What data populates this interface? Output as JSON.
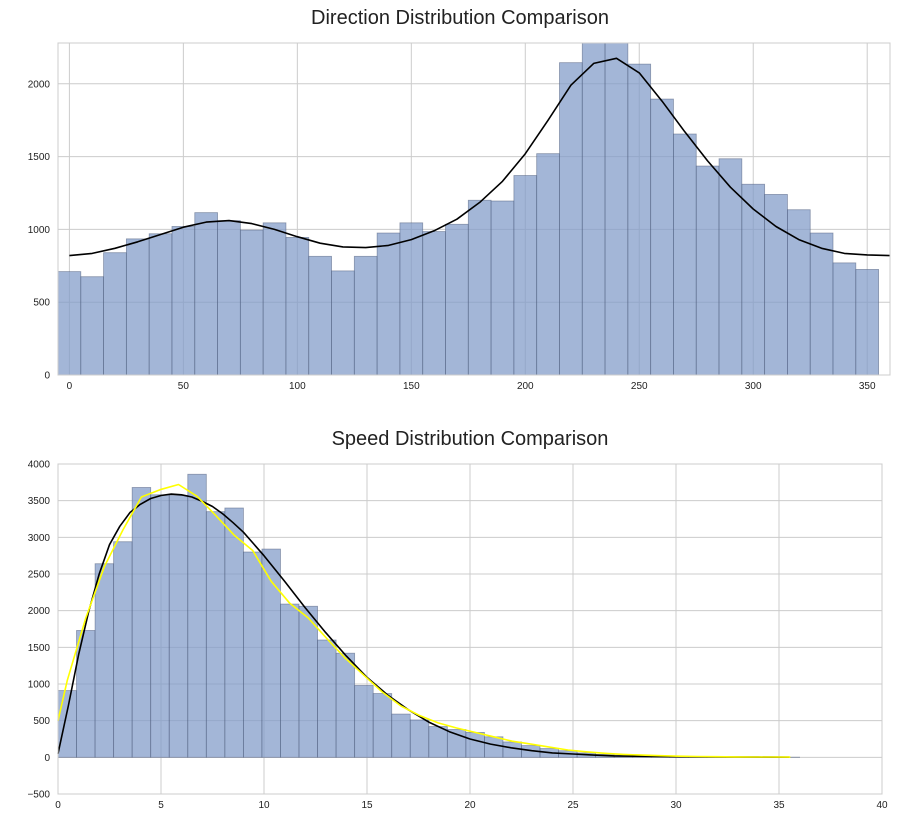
{
  "chart_data": [
    {
      "type": "bar",
      "title": "Direction Distribution Comparison",
      "xlabel": "",
      "ylabel": "",
      "xlim": [
        -5,
        360
      ],
      "ylim": [
        0,
        2280
      ],
      "xticks": [
        0,
        50,
        100,
        150,
        200,
        250,
        300,
        350
      ],
      "yticks": [
        0,
        500,
        1000,
        1500,
        2000
      ],
      "grid": true,
      "bin_width": 10,
      "bins": [
        {
          "x0": -5,
          "value": 710
        },
        {
          "x0": 5,
          "value": 675
        },
        {
          "x0": 15,
          "value": 840
        },
        {
          "x0": 25,
          "value": 935
        },
        {
          "x0": 35,
          "value": 970
        },
        {
          "x0": 45,
          "value": 1020
        },
        {
          "x0": 55,
          "value": 1115
        },
        {
          "x0": 65,
          "value": 1060
        },
        {
          "x0": 75,
          "value": 995
        },
        {
          "x0": 85,
          "value": 1045
        },
        {
          "x0": 95,
          "value": 945
        },
        {
          "x0": 105,
          "value": 815
        },
        {
          "x0": 115,
          "value": 715
        },
        {
          "x0": 125,
          "value": 815
        },
        {
          "x0": 135,
          "value": 975
        },
        {
          "x0": 145,
          "value": 1045
        },
        {
          "x0": 155,
          "value": 985
        },
        {
          "x0": 165,
          "value": 1035
        },
        {
          "x0": 175,
          "value": 1200
        },
        {
          "x0": 185,
          "value": 1195
        },
        {
          "x0": 195,
          "value": 1370
        },
        {
          "x0": 205,
          "value": 1520
        },
        {
          "x0": 215,
          "value": 2145
        },
        {
          "x0": 225,
          "value": 2280
        },
        {
          "x0": 235,
          "value": 2280
        },
        {
          "x0": 245,
          "value": 2135
        },
        {
          "x0": 255,
          "value": 1895
        },
        {
          "x0": 265,
          "value": 1655
        },
        {
          "x0": 275,
          "value": 1435
        },
        {
          "x0": 285,
          "value": 1485
        },
        {
          "x0": 295,
          "value": 1310
        },
        {
          "x0": 305,
          "value": 1240
        },
        {
          "x0": 315,
          "value": 1135
        },
        {
          "x0": 325,
          "value": 975
        },
        {
          "x0": 335,
          "value": 770
        },
        {
          "x0": 345,
          "value": 725
        }
      ],
      "series": [
        {
          "type": "line",
          "color": "#000000",
          "x": [
            0,
            10,
            20,
            30,
            40,
            50,
            60,
            70,
            80,
            90,
            100,
            110,
            120,
            130,
            140,
            150,
            160,
            170,
            180,
            190,
            200,
            210,
            220,
            230,
            240,
            250,
            260,
            270,
            280,
            290,
            300,
            310,
            320,
            330,
            340,
            350,
            360
          ],
          "y": [
            820,
            835,
            870,
            915,
            965,
            1015,
            1050,
            1060,
            1040,
            1000,
            950,
            905,
            880,
            875,
            890,
            930,
            990,
            1070,
            1185,
            1330,
            1520,
            1750,
            1990,
            2140,
            2175,
            2075,
            1880,
            1670,
            1470,
            1290,
            1140,
            1020,
            930,
            870,
            835,
            825,
            820
          ]
        }
      ]
    },
    {
      "type": "bar",
      "title": "Speed Distribution Comparison",
      "xlabel": "",
      "ylabel": "",
      "xlim": [
        0,
        40
      ],
      "ylim": [
        -500,
        4000
      ],
      "xticks": [
        0,
        5,
        10,
        15,
        20,
        25,
        30,
        35,
        40
      ],
      "yticks": [
        -500,
        0,
        500,
        1000,
        1500,
        2000,
        2500,
        3000,
        3500,
        4000
      ],
      "grid": true,
      "bin_width": 0.9,
      "bins": [
        {
          "x0": 0.0,
          "value": 910
        },
        {
          "x0": 0.9,
          "value": 1730
        },
        {
          "x0": 1.8,
          "value": 2640
        },
        {
          "x0": 2.7,
          "value": 2940
        },
        {
          "x0": 3.6,
          "value": 3680
        },
        {
          "x0": 4.5,
          "value": 3580
        },
        {
          "x0": 5.4,
          "value": 3570
        },
        {
          "x0": 6.3,
          "value": 3860
        },
        {
          "x0": 7.2,
          "value": 3350
        },
        {
          "x0": 8.1,
          "value": 3400
        },
        {
          "x0": 9.0,
          "value": 2800
        },
        {
          "x0": 9.9,
          "value": 2840
        },
        {
          "x0": 10.8,
          "value": 2090
        },
        {
          "x0": 11.7,
          "value": 2060
        },
        {
          "x0": 12.6,
          "value": 1600
        },
        {
          "x0": 13.5,
          "value": 1420
        },
        {
          "x0": 14.4,
          "value": 980
        },
        {
          "x0": 15.3,
          "value": 870
        },
        {
          "x0": 16.2,
          "value": 590
        },
        {
          "x0": 17.1,
          "value": 510
        },
        {
          "x0": 18.0,
          "value": 420
        },
        {
          "x0": 18.9,
          "value": 380
        },
        {
          "x0": 19.8,
          "value": 340
        },
        {
          "x0": 20.7,
          "value": 280
        },
        {
          "x0": 21.6,
          "value": 210
        },
        {
          "x0": 22.5,
          "value": 160
        },
        {
          "x0": 23.4,
          "value": 120
        },
        {
          "x0": 24.3,
          "value": 90
        },
        {
          "x0": 25.2,
          "value": 60
        },
        {
          "x0": 26.1,
          "value": 40
        },
        {
          "x0": 27.0,
          "value": 30
        },
        {
          "x0": 27.9,
          "value": 20
        },
        {
          "x0": 28.8,
          "value": 15
        },
        {
          "x0": 29.7,
          "value": 10
        },
        {
          "x0": 30.6,
          "value": 8
        },
        {
          "x0": 31.5,
          "value": 6
        },
        {
          "x0": 32.4,
          "value": 5
        },
        {
          "x0": 33.3,
          "value": 4
        },
        {
          "x0": 34.2,
          "value": 3
        },
        {
          "x0": 35.1,
          "value": 2
        }
      ],
      "series": [
        {
          "type": "line",
          "color": "#000000",
          "x": [
            0,
            0.5,
            1,
            1.5,
            2,
            2.5,
            3,
            3.5,
            4,
            4.5,
            5,
            5.5,
            6,
            6.5,
            7,
            7.5,
            8,
            8.5,
            9,
            9.5,
            10,
            11,
            12,
            13,
            14,
            15,
            16,
            17,
            18,
            19,
            20,
            21,
            22,
            23,
            24,
            25,
            26,
            27,
            28,
            30,
            32,
            34,
            35.5
          ],
          "y": [
            50,
            700,
            1400,
            2000,
            2500,
            2900,
            3150,
            3340,
            3450,
            3530,
            3570,
            3590,
            3580,
            3550,
            3490,
            3420,
            3320,
            3200,
            3070,
            2910,
            2750,
            2400,
            2040,
            1700,
            1380,
            1090,
            850,
            650,
            480,
            350,
            250,
            180,
            130,
            90,
            60,
            45,
            30,
            20,
            15,
            8,
            5,
            3,
            2
          ]
        },
        {
          "type": "line",
          "color": "#ffff00",
          "x": [
            0,
            0.45,
            1.35,
            2.25,
            3.15,
            4.05,
            4.95,
            5.85,
            6.75,
            7.65,
            8.55,
            9.45,
            10.35,
            11.25,
            12.15,
            13.05,
            13.95,
            14.85,
            15.75,
            16.65,
            17.55,
            18.45,
            19.35,
            20.25,
            21.15,
            22.05,
            22.95,
            23.85,
            24.75,
            25.65,
            26.55,
            27.45,
            28.35,
            29.25,
            30.15,
            31.05,
            31.95,
            32.85,
            33.75,
            34.65,
            35.55
          ],
          "y": [
            500,
            1050,
            1900,
            2600,
            3100,
            3550,
            3650,
            3720,
            3560,
            3300,
            3030,
            2820,
            2400,
            2100,
            1900,
            1620,
            1350,
            1120,
            890,
            700,
            570,
            470,
            400,
            340,
            280,
            220,
            180,
            140,
            100,
            75,
            55,
            40,
            30,
            22,
            16,
            12,
            8,
            6,
            5,
            4,
            3
          ]
        }
      ]
    }
  ]
}
